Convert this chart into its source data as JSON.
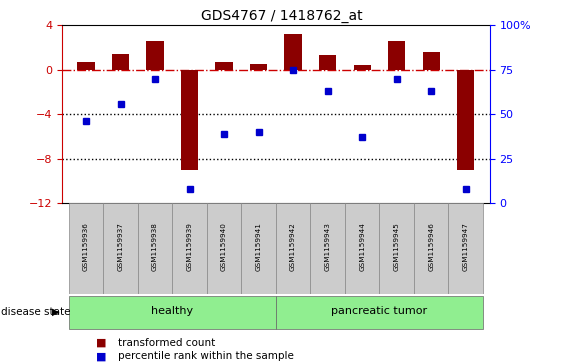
{
  "title": "GDS4767 / 1418762_at",
  "samples": [
    "GSM1159936",
    "GSM1159937",
    "GSM1159938",
    "GSM1159939",
    "GSM1159940",
    "GSM1159941",
    "GSM1159942",
    "GSM1159943",
    "GSM1159944",
    "GSM1159945",
    "GSM1159946",
    "GSM1159947"
  ],
  "bar_values": [
    0.7,
    1.4,
    2.6,
    -9.0,
    0.7,
    0.5,
    3.2,
    1.3,
    0.4,
    2.6,
    1.6,
    -9.0
  ],
  "blue_values": [
    46,
    56,
    70,
    8,
    39,
    40,
    75,
    63,
    37,
    70,
    63,
    8
  ],
  "bar_color": "#8B0000",
  "blue_color": "#0000CD",
  "ylim_left": [
    -12,
    4
  ],
  "ylim_right": [
    0,
    100
  ],
  "yticks_left": [
    4,
    0,
    -4,
    -8,
    -12
  ],
  "yticks_right": [
    0,
    25,
    50,
    75,
    100
  ],
  "dotted_lines": [
    -4,
    -8
  ],
  "groups": [
    {
      "label": "healthy",
      "start": 0,
      "end": 6
    },
    {
      "label": "pancreatic tumor",
      "start": 6,
      "end": 12
    }
  ],
  "group_color": "#90EE90",
  "disease_state_label": "disease state",
  "legend_bar_label": "transformed count",
  "legend_blue_label": "percentile rank within the sample",
  "bar_width": 0.5
}
